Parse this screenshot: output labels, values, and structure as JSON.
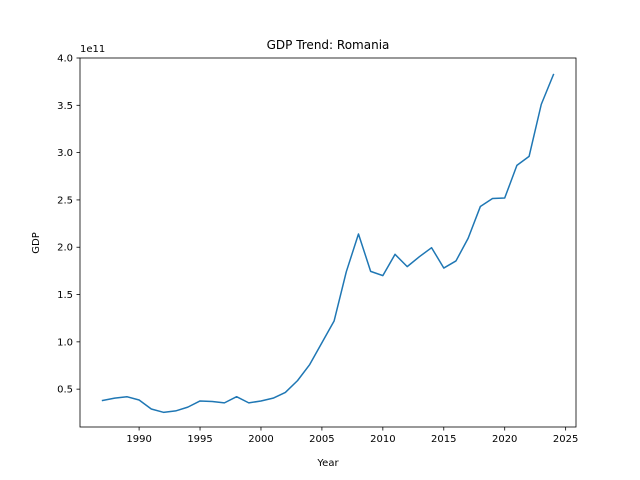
{
  "chart_data": {
    "type": "line",
    "title": "GDP Trend: Romania",
    "xlabel": "Year",
    "ylabel": "GDP",
    "y_offset_label": "1e11",
    "xlim": [
      1985.15,
      2025.85
    ],
    "ylim": [
      0.1,
      4.0
    ],
    "y_scale_note": "values in units of 1e11",
    "x_ticks": [
      1990,
      1995,
      2000,
      2005,
      2010,
      2015,
      2020,
      2025
    ],
    "y_ticks": [
      0.5,
      1.0,
      1.5,
      2.0,
      2.5,
      3.0,
      3.5,
      4.0
    ],
    "x_tick_labels": [
      "1990",
      "1995",
      "2000",
      "2005",
      "2010",
      "2015",
      "2020",
      "2025"
    ],
    "y_tick_labels": [
      "0.5",
      "1.0",
      "1.5",
      "2.0",
      "2.5",
      "3.0",
      "3.5",
      "4.0"
    ],
    "grid": false,
    "series": [
      {
        "color": "#1f77b4",
        "x": [
          1987,
          1988,
          1989,
          1990,
          1991,
          1992,
          1993,
          1994,
          1995,
          1996,
          1997,
          1998,
          1999,
          2000,
          2001,
          2002,
          2003,
          2004,
          2005,
          2006,
          2007,
          2008,
          2009,
          2010,
          2011,
          2012,
          2013,
          2014,
          2015,
          2016,
          2017,
          2018,
          2019,
          2020,
          2021,
          2022,
          2023,
          2024
        ],
        "y": [
          0.38,
          0.405,
          0.42,
          0.385,
          0.29,
          0.255,
          0.27,
          0.31,
          0.375,
          0.37,
          0.355,
          0.42,
          0.355,
          0.375,
          0.405,
          0.465,
          0.59,
          0.76,
          0.99,
          1.22,
          1.74,
          2.14,
          1.745,
          1.7,
          1.925,
          1.795,
          1.9,
          1.995,
          1.78,
          1.855,
          2.095,
          2.43,
          2.515,
          2.52,
          2.865,
          2.96,
          3.51,
          3.825
        ]
      }
    ]
  }
}
